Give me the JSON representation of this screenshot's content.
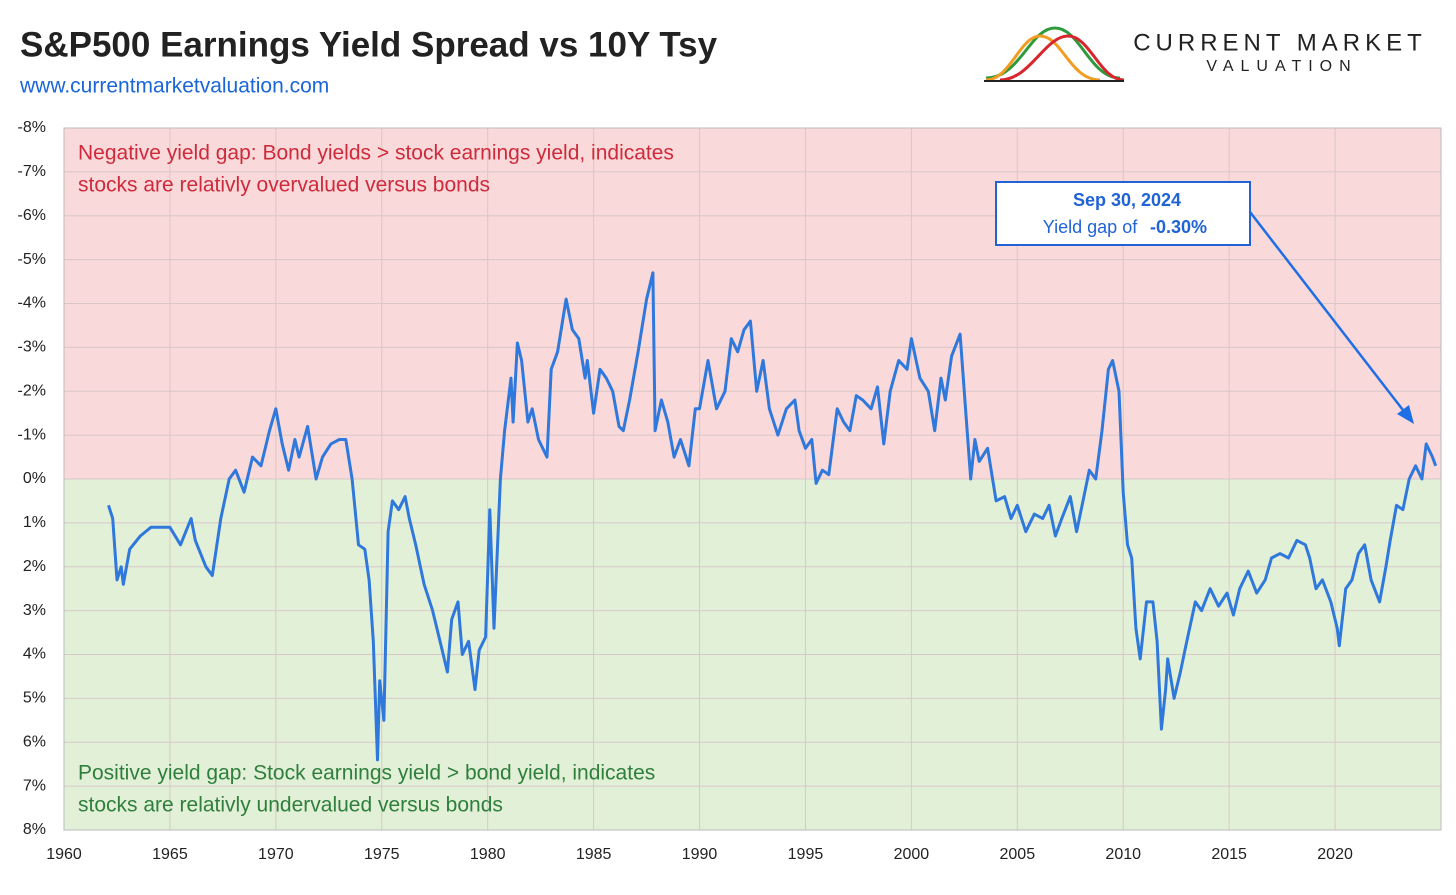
{
  "chart_data": {
    "type": "line",
    "title": "S&P500 Earnings Yield Spread vs 10Y Tsy",
    "subtitle": "www.currentmarketvaluation.com",
    "color": "#2f78dc",
    "grid": true,
    "shade": {
      "above_zero": "#f9d9d9",
      "below_zero": "#e3f0d8"
    },
    "x": [
      1962.1,
      1962.3,
      1962.5,
      1962.7,
      1962.8,
      1963.1,
      1963.6,
      1964.1,
      1964.5,
      1965.0,
      1965.5,
      1966.0,
      1966.2,
      1966.7,
      1967.0,
      1967.4,
      1967.8,
      1968.1,
      1968.5,
      1968.9,
      1969.3,
      1969.7,
      1970.0,
      1970.3,
      1970.6,
      1970.9,
      1971.1,
      1971.5,
      1971.9,
      1972.2,
      1972.6,
      1973.0,
      1973.3,
      1973.6,
      1973.9,
      1974.2,
      1974.4,
      1974.6,
      1974.8,
      1974.9,
      1975.1,
      1975.3,
      1975.5,
      1975.8,
      1976.1,
      1976.3,
      1976.6,
      1977.0,
      1977.4,
      1977.8,
      1978.1,
      1978.3,
      1978.6,
      1978.8,
      1979.1,
      1979.4,
      1979.6,
      1979.9,
      1980.1,
      1980.3,
      1980.6,
      1980.8,
      1981.1,
      1981.2,
      1981.4,
      1981.6,
      1981.9,
      1982.1,
      1982.4,
      1982.8,
      1983.0,
      1983.3,
      1983.7,
      1984.0,
      1984.3,
      1984.6,
      1984.7,
      1985.0,
      1985.3,
      1985.6,
      1985.9,
      1986.2,
      1986.4,
      1986.7,
      1987.1,
      1987.5,
      1987.8,
      1987.9,
      1988.2,
      1988.5,
      1988.8,
      1989.1,
      1989.5,
      1989.8,
      1990.0,
      1990.4,
      1990.8,
      1991.2,
      1991.5,
      1991.8,
      1992.1,
      1992.4,
      1992.7,
      1993.0,
      1993.3,
      1993.7,
      1994.1,
      1994.5,
      1994.7,
      1995.0,
      1995.3,
      1995.5,
      1995.8,
      1996.1,
      1996.5,
      1996.8,
      1997.1,
      1997.4,
      1997.7,
      1998.1,
      1998.4,
      1998.7,
      1999.0,
      1999.4,
      1999.8,
      2000.0,
      2000.4,
      2000.8,
      2001.1,
      2001.4,
      2001.6,
      2001.9,
      2002.3,
      2002.6,
      2002.8,
      2003.0,
      2003.2,
      2003.6,
      2004.0,
      2004.4,
      2004.7,
      2005.0,
      2005.4,
      2005.8,
      2006.2,
      2006.5,
      2006.8,
      2007.1,
      2007.5,
      2007.8,
      2008.1,
      2008.4,
      2008.7,
      2009.0,
      2009.3,
      2009.5,
      2009.8,
      2010.0,
      2010.2,
      2010.4,
      2010.6,
      2010.8,
      2011.1,
      2011.4,
      2011.6,
      2011.8,
      2012.0,
      2012.1,
      2012.4,
      2012.7,
      2013.0,
      2013.4,
      2013.7,
      2014.1,
      2014.5,
      2014.9,
      2015.2,
      2015.5,
      2015.9,
      2016.3,
      2016.7,
      2017.0,
      2017.4,
      2017.8,
      2018.2,
      2018.6,
      2018.8,
      2019.1,
      2019.4,
      2019.8,
      2020.1,
      2020.2,
      2020.5,
      2020.8,
      2021.1,
      2021.4,
      2021.7,
      2022.1,
      2022.4,
      2022.6,
      2022.9,
      2023.2,
      2023.5,
      2023.8,
      2024.1,
      2024.3,
      2024.6,
      2024.75
    ],
    "values": [
      0.6,
      0.9,
      2.3,
      2.0,
      2.4,
      1.6,
      1.3,
      1.1,
      1.1,
      1.1,
      1.5,
      0.9,
      1.4,
      2.0,
      2.2,
      0.9,
      0.0,
      -0.2,
      0.3,
      -0.5,
      -0.3,
      -1.1,
      -1.6,
      -0.8,
      -0.2,
      -0.9,
      -0.5,
      -1.2,
      0.0,
      -0.5,
      -0.8,
      -0.9,
      -0.9,
      0.0,
      1.5,
      1.6,
      2.3,
      3.7,
      6.4,
      4.6,
      5.5,
      1.2,
      0.5,
      0.7,
      0.4,
      0.9,
      1.5,
      2.4,
      3.0,
      3.8,
      4.4,
      3.2,
      2.8,
      4.0,
      3.7,
      4.8,
      3.9,
      3.6,
      0.7,
      3.4,
      0.0,
      -1.1,
      -2.3,
      -1.3,
      -3.1,
      -2.7,
      -1.3,
      -1.6,
      -0.9,
      -0.5,
      -2.5,
      -2.9,
      -4.1,
      -3.4,
      -3.2,
      -2.3,
      -2.7,
      -1.5,
      -2.5,
      -2.3,
      -2.0,
      -1.2,
      -1.1,
      -1.8,
      -2.9,
      -4.1,
      -4.7,
      -1.1,
      -1.8,
      -1.3,
      -0.5,
      -0.9,
      -0.3,
      -1.6,
      -1.6,
      -2.7,
      -1.6,
      -2.0,
      -3.2,
      -2.9,
      -3.4,
      -3.6,
      -2.0,
      -2.7,
      -1.6,
      -1.0,
      -1.6,
      -1.8,
      -1.1,
      -0.7,
      -0.9,
      0.1,
      -0.2,
      -0.1,
      -1.6,
      -1.3,
      -1.1,
      -1.9,
      -1.8,
      -1.6,
      -2.1,
      -0.8,
      -2.0,
      -2.7,
      -2.5,
      -3.2,
      -2.3,
      -2.0,
      -1.1,
      -2.3,
      -1.8,
      -2.8,
      -3.3,
      -1.3,
      0.0,
      -0.9,
      -0.4,
      -0.7,
      0.5,
      0.4,
      0.9,
      0.6,
      1.2,
      0.8,
      0.9,
      0.6,
      1.3,
      0.9,
      0.4,
      1.2,
      0.5,
      -0.2,
      0.0,
      -1.1,
      -2.5,
      -2.7,
      -2.0,
      0.3,
      1.5,
      1.8,
      3.4,
      4.1,
      2.8,
      2.8,
      3.7,
      5.7,
      4.8,
      4.1,
      5.0,
      4.4,
      3.7,
      2.8,
      3.0,
      2.5,
      2.9,
      2.6,
      3.1,
      2.5,
      2.1,
      2.6,
      2.3,
      1.8,
      1.7,
      1.8,
      1.4,
      1.5,
      1.8,
      2.5,
      2.3,
      2.8,
      3.4,
      3.8,
      2.5,
      2.3,
      1.7,
      1.5,
      2.3,
      2.8,
      2.0,
      1.4,
      0.6,
      0.7,
      0.0,
      -0.3,
      0.0,
      -0.8,
      -0.5,
      -0.3
    ],
    "xlim": [
      1960,
      2025
    ],
    "xticks": [
      1960,
      1965,
      1970,
      1975,
      1980,
      1985,
      1990,
      1995,
      2000,
      2005,
      2010,
      2015,
      2020
    ],
    "ylim": [
      8,
      -8
    ],
    "yticks": [
      {
        "value": -8,
        "label": "-8%"
      },
      {
        "value": -7,
        "label": "-7%"
      },
      {
        "value": -6,
        "label": "-6%"
      },
      {
        "value": -5,
        "label": "-5%"
      },
      {
        "value": -4,
        "label": "-4%"
      },
      {
        "value": -3,
        "label": "-3%"
      },
      {
        "value": -2,
        "label": "-2%"
      },
      {
        "value": -1,
        "label": "-1%"
      },
      {
        "value": 0,
        "label": "0%"
      },
      {
        "value": 1,
        "label": "1%"
      },
      {
        "value": 2,
        "label": "2%"
      },
      {
        "value": 3,
        "label": "3%"
      },
      {
        "value": 4,
        "label": "4%"
      },
      {
        "value": 5,
        "label": "5%"
      },
      {
        "value": 6,
        "label": "6%"
      },
      {
        "value": 7,
        "label": "7%"
      },
      {
        "value": 8,
        "label": "8%"
      }
    ],
    "annotations": [
      {
        "lines": [
          "Negative yield gap: Bond yields > stock earnings yield,  indicates",
          "stocks are relativly overvalued versus bonds"
        ],
        "color": "#cf2a3c"
      },
      {
        "lines": [
          "Positive yield gap: Stock earnings yield > bond yield, indicates",
          "stocks are relativly undervalued versus bonds"
        ],
        "color": "#2e7f3c"
      }
    ],
    "callout": {
      "date": "Sep 30, 2024",
      "text": "Yield gap of",
      "value": "-0.30%"
    }
  },
  "logo": {
    "line1": "CURRENT MARKET",
    "line2": "VALUATION"
  }
}
